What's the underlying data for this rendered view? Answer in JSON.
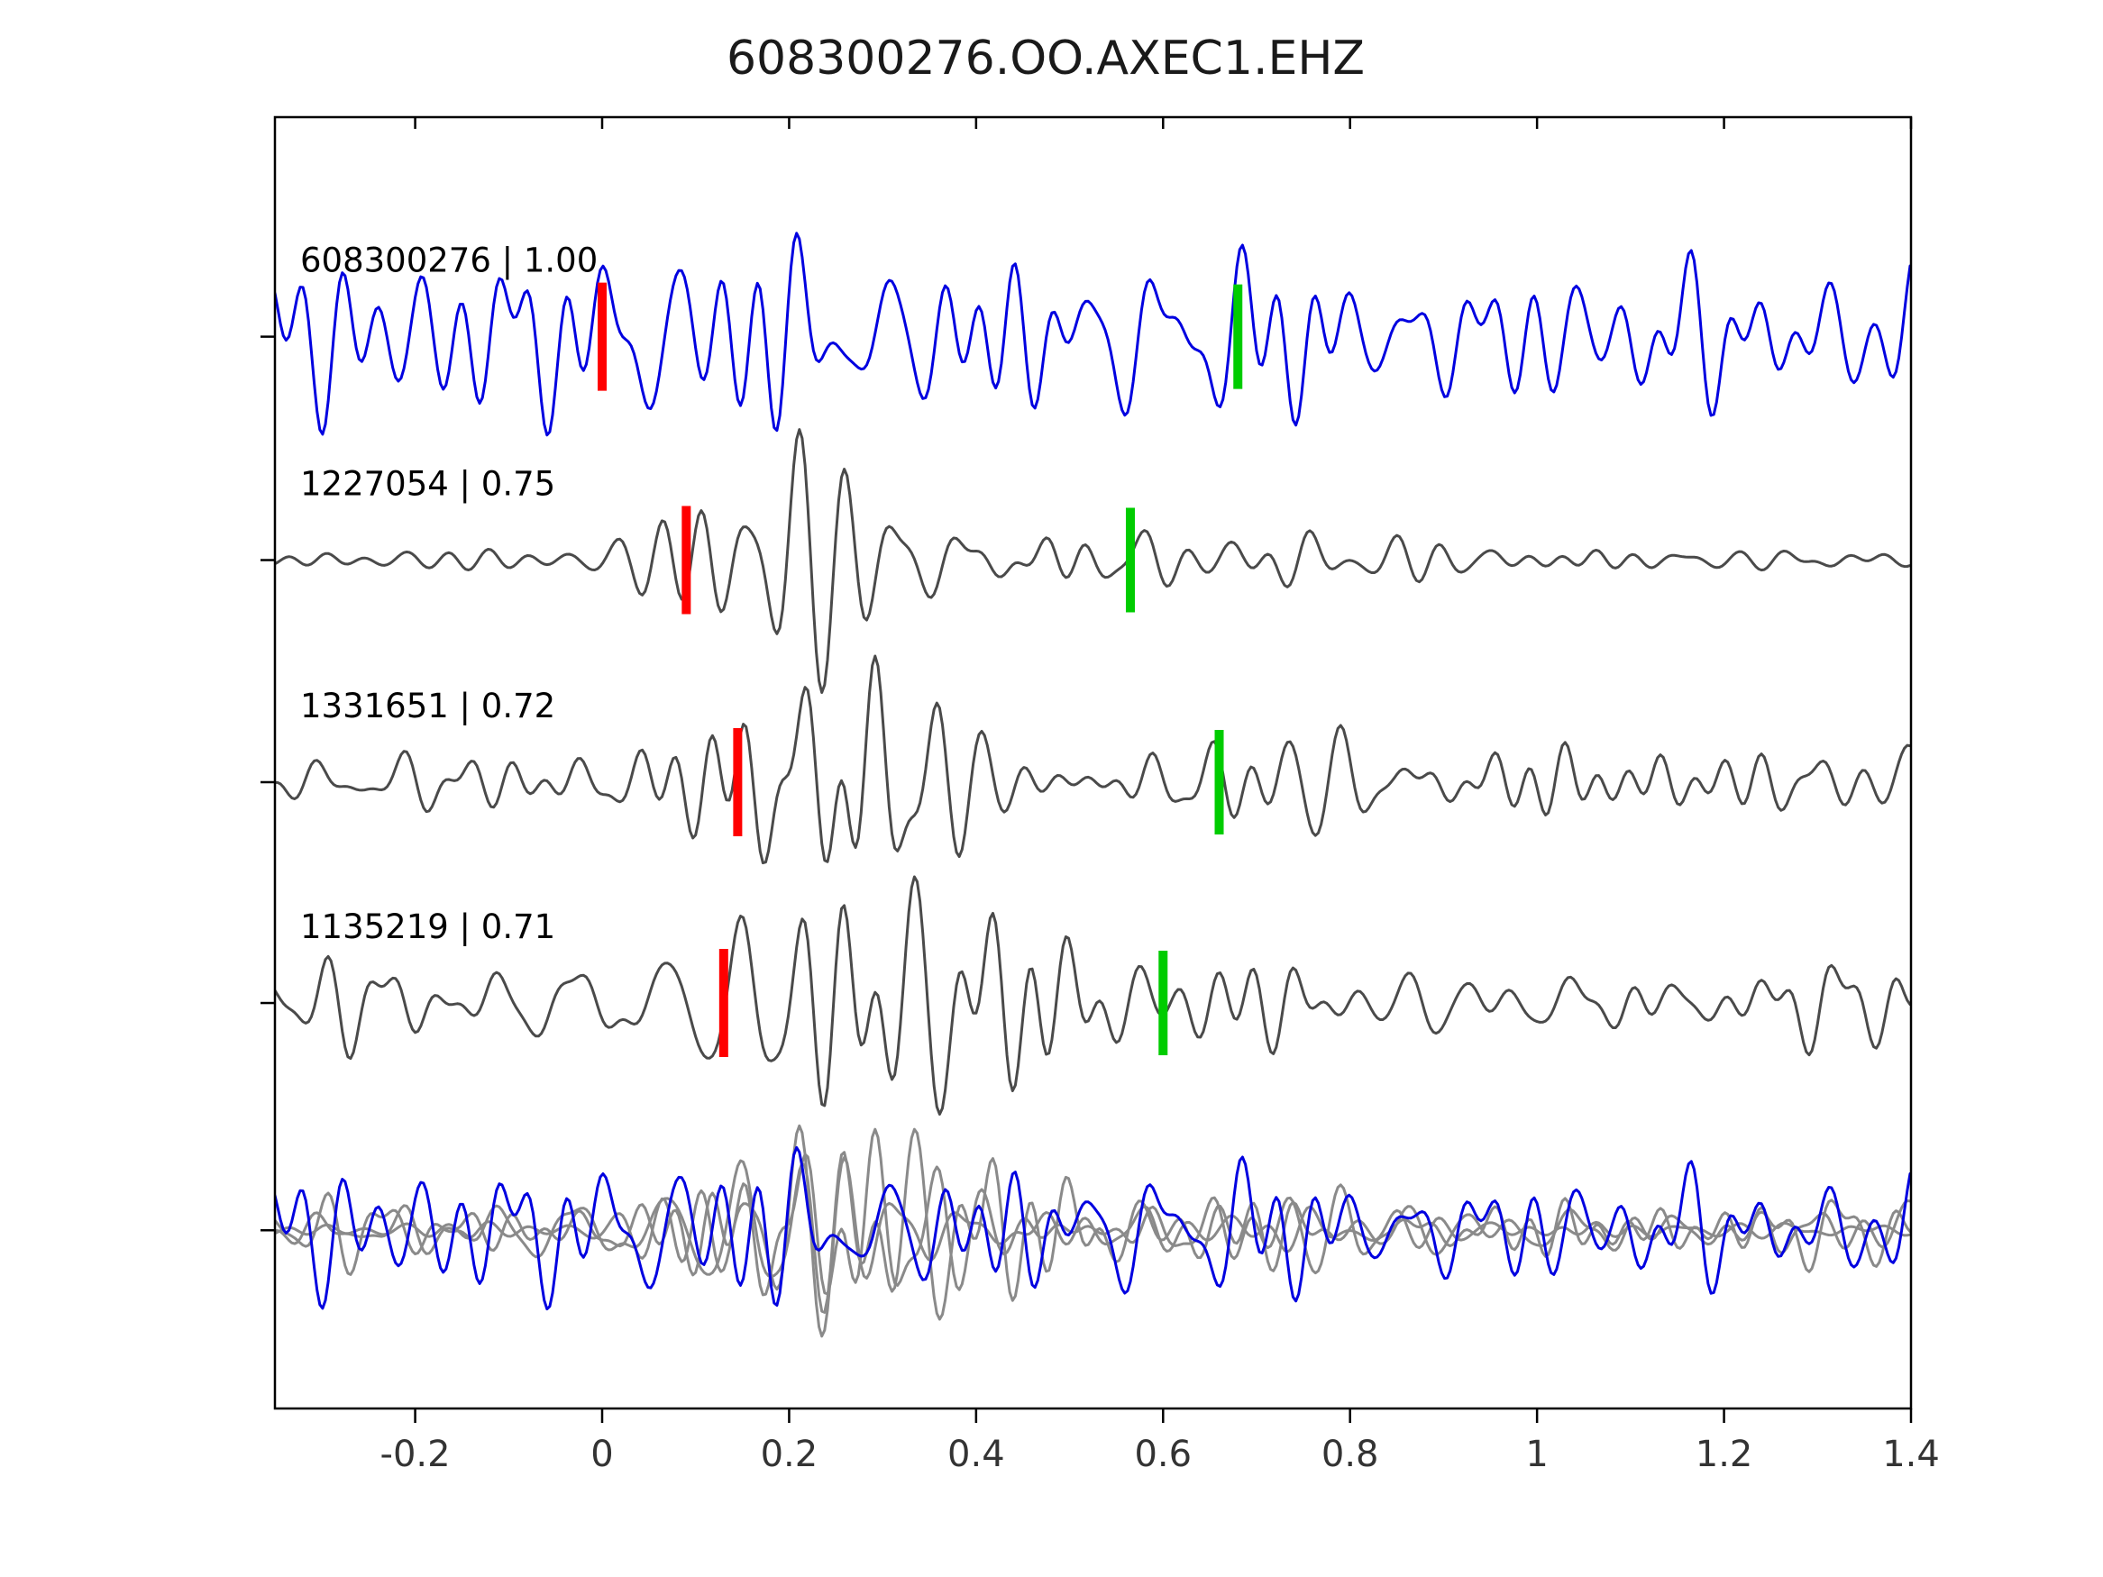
{
  "title": "608300276.OO.AXEC1.EHZ",
  "colors": {
    "detection_blue": "#0000e0",
    "template_gray": "#4a4a4a",
    "overlay_gray": "#8a8a8a",
    "pick_red": "#ff0000",
    "pick_green": "#00cc00",
    "axis": "#000000",
    "background": "#ffffff"
  },
  "chart_data": {
    "type": "line",
    "title": "608300276.OO.AXEC1.EHZ",
    "xlabel": "",
    "ylabel": "",
    "xlim": [
      -0.35,
      1.4
    ],
    "xticks": [
      -0.2,
      0,
      0.2,
      0.4,
      0.6,
      0.8,
      1,
      1.2,
      1.4
    ],
    "xtick_labels": [
      "-0.2",
      "0",
      "0.2",
      "0.4",
      "0.6",
      "0.8",
      "1",
      "1.2",
      "1.4"
    ],
    "grid": false,
    "legend": "none",
    "traces": [
      {
        "id": "608300276",
        "label": "608300276 | 1.00",
        "correlation": 1.0,
        "color": "#0000e0",
        "red_pick_t": 0.0,
        "green_pick_t": 0.68,
        "synth": {
          "seed": 101,
          "n_osc": 26,
          "f_lo": 8,
          "f_hi": 30,
          "base": 0.8,
          "bursts": [
            [
              0.25,
              0.12,
              0.5
            ],
            [
              0.78,
              0.045,
              0.7
            ]
          ],
          "gain": 0.82
        }
      },
      {
        "id": "1227054",
        "label": "1227054 | 0.75",
        "correlation": 0.75,
        "color": "#4a4a4a",
        "red_pick_t": 0.09,
        "green_pick_t": 0.565,
        "synth": {
          "seed": 202,
          "n_osc": 26,
          "f_lo": 8,
          "f_hi": 30,
          "base": 0.2,
          "bursts": [
            [
              0.2,
              0.08,
              1.9
            ],
            [
              0.55,
              0.3,
              0.35
            ]
          ],
          "gain": 1.05
        }
      },
      {
        "id": "1331651",
        "label": "1331651 | 0.72",
        "correlation": 0.72,
        "color": "#4a4a4a",
        "red_pick_t": 0.145,
        "green_pick_t": 0.66,
        "synth": {
          "seed": 303,
          "n_osc": 26,
          "f_lo": 8,
          "f_hi": 30,
          "base": 0.5,
          "bursts": [
            [
              0.28,
              0.1,
              1.4
            ],
            [
              0.8,
              0.25,
              0.2
            ]
          ],
          "gain": 1.0
        }
      },
      {
        "id": "1135219",
        "label": "1135219 | 0.71",
        "correlation": 0.71,
        "color": "#4a4a4a",
        "red_pick_t": 0.13,
        "green_pick_t": 0.6,
        "synth": {
          "seed": 404,
          "n_osc": 26,
          "f_lo": 8,
          "f_hi": 30,
          "base": 0.55,
          "bursts": [
            [
              0.3,
              0.11,
              1.25
            ]
          ],
          "gain": 1.0
        }
      }
    ],
    "overlay_row": {
      "includes": [
        "1227054",
        "1331651",
        "1135219",
        "608300276"
      ],
      "gray_color": "#8a8a8a",
      "blue_on_top": "608300276",
      "scale": 0.8
    }
  }
}
